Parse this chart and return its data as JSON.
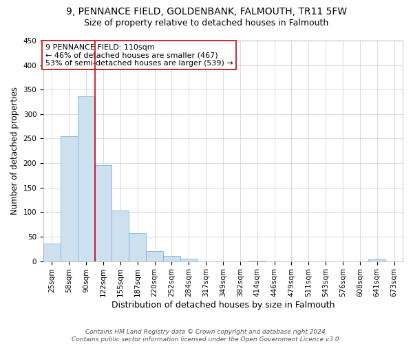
{
  "title": "9, PENNANCE FIELD, GOLDENBANK, FALMOUTH, TR11 5FW",
  "subtitle": "Size of property relative to detached houses in Falmouth",
  "xlabel": "Distribution of detached houses by size in Falmouth",
  "ylabel": "Number of detached properties",
  "bar_labels": [
    "25sqm",
    "58sqm",
    "90sqm",
    "122sqm",
    "155sqm",
    "187sqm",
    "220sqm",
    "252sqm",
    "284sqm",
    "317sqm",
    "349sqm",
    "382sqm",
    "414sqm",
    "446sqm",
    "479sqm",
    "511sqm",
    "543sqm",
    "576sqm",
    "608sqm",
    "641sqm",
    "673sqm"
  ],
  "bar_values": [
    36,
    255,
    336,
    196,
    104,
    57,
    21,
    11,
    5,
    0,
    0,
    0,
    1,
    0,
    0,
    0,
    0,
    0,
    0,
    3,
    0
  ],
  "bar_color": "#cce0f0",
  "bar_edge_color": "#7ab4d8",
  "vline_x": 2.5,
  "vline_color": "#cc0000",
  "annotation_text": "9 PENNANCE FIELD: 110sqm\n← 46% of detached houses are smaller (467)\n53% of semi-detached houses are larger (539) →",
  "annotation_box_color": "#ffffff",
  "annotation_box_edge": "#cc0000",
  "ylim": [
    0,
    450
  ],
  "yticks": [
    0,
    50,
    100,
    150,
    200,
    250,
    300,
    350,
    400,
    450
  ],
  "footnote": "Contains HM Land Registry data © Crown copyright and database right 2024.\nContains public sector information licensed under the Open Government Licence v3.0.",
  "title_fontsize": 10,
  "subtitle_fontsize": 9,
  "xlabel_fontsize": 9,
  "ylabel_fontsize": 8.5,
  "tick_fontsize": 7.5,
  "annotation_fontsize": 8,
  "footnote_fontsize": 6.5
}
